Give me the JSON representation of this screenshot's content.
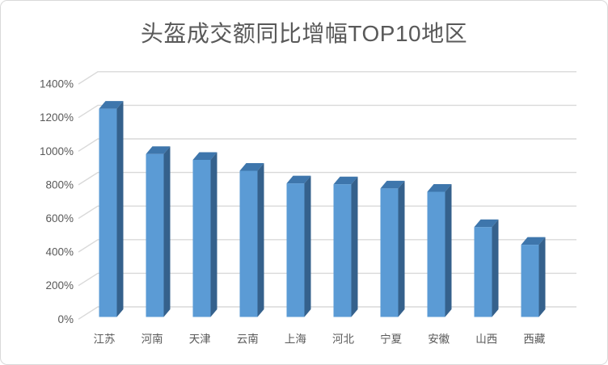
{
  "chart": {
    "title": "头盔成交额同比增幅TOP10地区"
  },
  "chart_data": {
    "type": "bar",
    "style": "3d-column",
    "title": "头盔成交额同比增幅TOP10地区",
    "categories": [
      "江苏",
      "河南",
      "天津",
      "云南",
      "上海",
      "河北",
      "宁夏",
      "安徽",
      "山西",
      "西藏"
    ],
    "values": [
      1240,
      970,
      935,
      870,
      795,
      790,
      765,
      745,
      535,
      430
    ],
    "unit": "%",
    "xlabel": "",
    "ylabel": "",
    "ylim": [
      0,
      1400
    ],
    "y_tick_step": 200,
    "y_tick_labels": [
      "0%",
      "200%",
      "400%",
      "600%",
      "800%",
      "1000%",
      "1200%",
      "1400%"
    ],
    "grid": true,
    "legend": false
  },
  "colors": {
    "bar_front": "#5b9bd5",
    "bar_top": "#3e76ac",
    "bar_side": "#35618c",
    "gridline": "#d9d9d9",
    "axis_text": "#595959",
    "title_text": "#595959",
    "frame_border": "#d9d9d9",
    "background": "#ffffff"
  }
}
